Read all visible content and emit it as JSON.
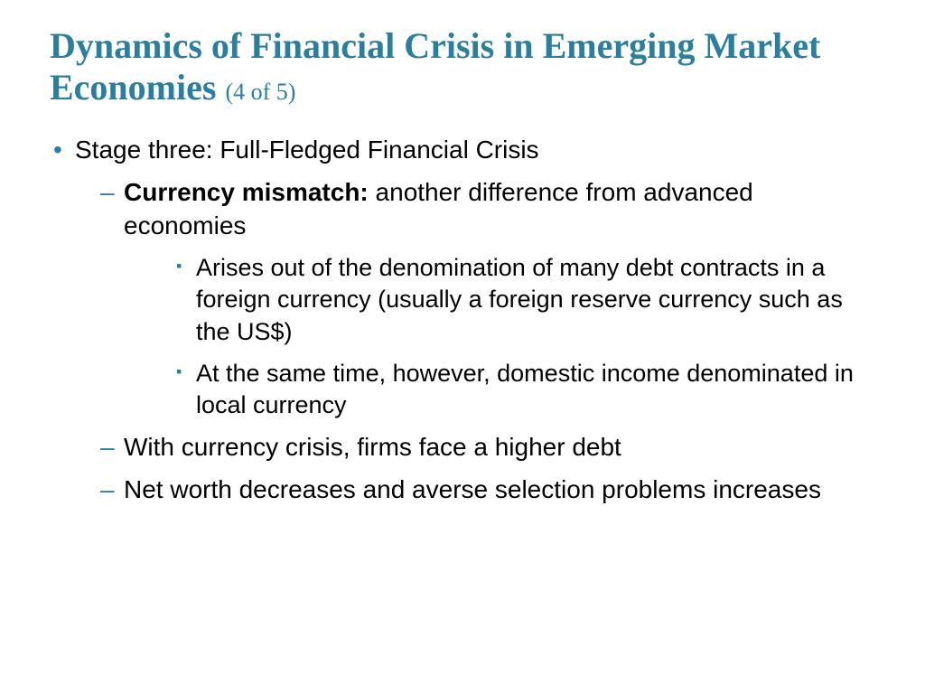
{
  "colors": {
    "title": "#2a7f9e",
    "bullet_lvl1": "#2a7f9e",
    "bullet_lvl2": "#2a7f9e",
    "bullet_lvl3": "#2a7f9e",
    "text": "#000000",
    "background": "#ffffff"
  },
  "title": {
    "main": "Dynamics of Financial Crisis in Emerging Market Economies",
    "sub": "(4 of 5)",
    "font_family": "Times New Roman",
    "font_size_main": 40,
    "font_size_sub": 26
  },
  "body": {
    "font_family": "Arial",
    "font_size": 28,
    "lvl1": [
      {
        "text": "Stage three: Full-Fledged Financial Crisis",
        "lvl2": [
          {
            "bold_prefix": "Currency mismatch:",
            "text": " another difference from advanced economies",
            "lvl3": [
              {
                "text": "Arises out of the denomination of many debt contracts in a foreign currency (usually a foreign reserve currency such as the US$)"
              },
              {
                "text": "At the same time, however, domestic income denominated in local currency"
              }
            ]
          },
          {
            "text": "With currency crisis, firms face a higher debt"
          },
          {
            "text": "Net worth decreases and averse selection problems increases"
          }
        ]
      }
    ]
  }
}
